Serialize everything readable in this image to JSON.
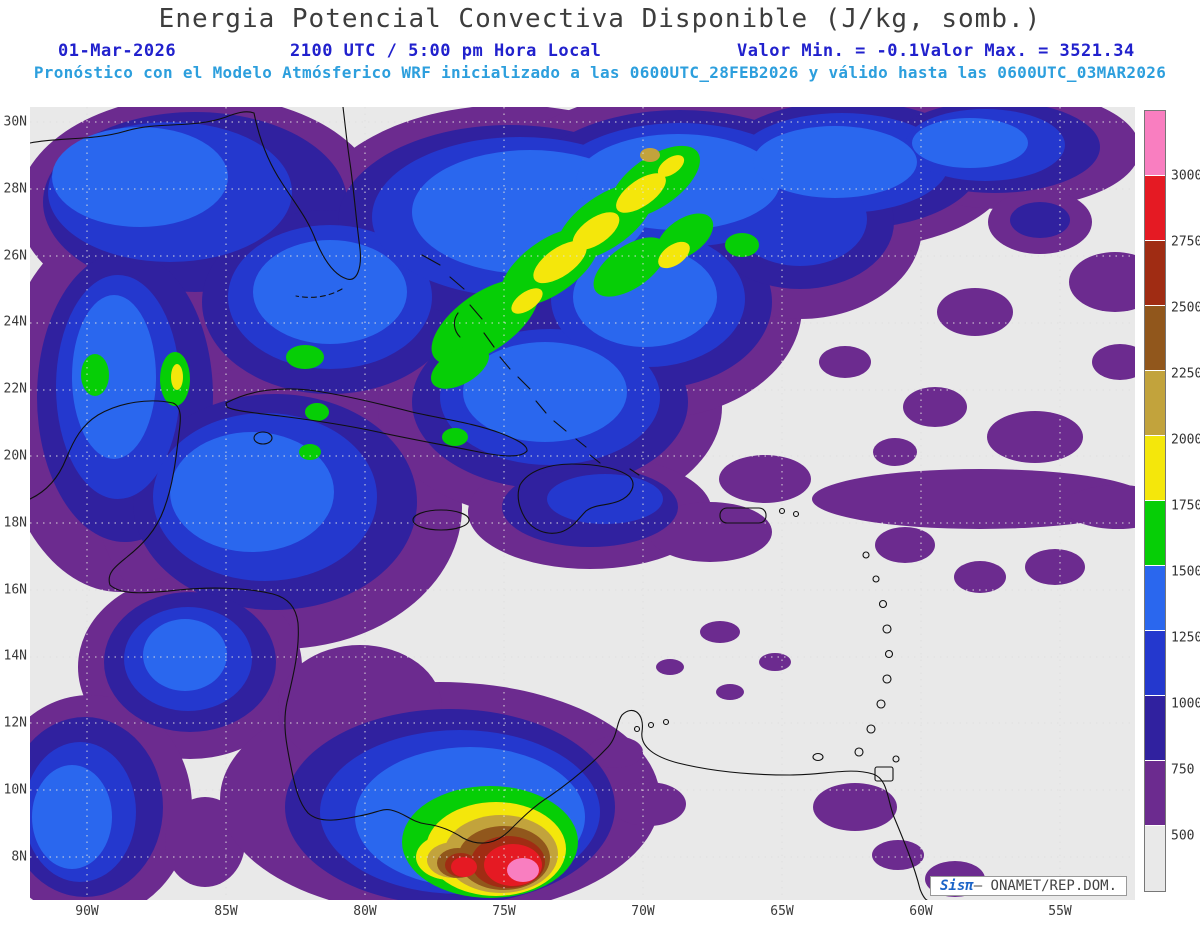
{
  "header": {
    "title": "Energia Potencial Convectiva Disponible (J/kg, somb.)",
    "date": "01-Mar-2026",
    "time": "2100 UTC / 5:00 pm Hora Local",
    "min_label": "Valor Min. = -0.1",
    "max_label": "Valor Max. = 3521.34",
    "forecast_note": "Pronóstico con el Modelo Atmósferico WRF inicializado a las 0600UTC_28FEB2026 y válido hasta las  0600UTC_03MAR2026"
  },
  "map": {
    "lat_ticks": [
      "30N",
      "28N",
      "26N",
      "24N",
      "22N",
      "20N",
      "18N",
      "16N",
      "14N",
      "12N",
      "10N",
      "8N"
    ],
    "lon_ticks": [
      "90W",
      "85W",
      "80W",
      "75W",
      "70W",
      "65W",
      "60W",
      "55W"
    ]
  },
  "colorbar": {
    "tick_labels": [
      "3000",
      "2750",
      "2500",
      "2250",
      "2000",
      "1750",
      "1500",
      "1250",
      "1000",
      "750",
      "500"
    ],
    "segments_top_to_bottom": [
      {
        "range": "> 3000",
        "color": "#F97EC0"
      },
      {
        "range": "2750 - 3000",
        "color": "#E51A23"
      },
      {
        "range": "2500 - 2750",
        "color": "#A02C13"
      },
      {
        "range": "2250 - 2500",
        "color": "#91571C"
      },
      {
        "range": "2000 - 2250",
        "color": "#C2A33C"
      },
      {
        "range": "1750 - 2000",
        "color": "#F4E70B"
      },
      {
        "range": "1500 - 1750",
        "color": "#06CE06"
      },
      {
        "range": "1250 - 1500",
        "color": "#2A67EE"
      },
      {
        "range": "1000 - 1250",
        "color": "#2438CE"
      },
      {
        "range": "750 - 1000",
        "color": "#30219F"
      },
      {
        "range": "500 - 750",
        "color": "#6C2B8F"
      },
      {
        "range": "< 500",
        "color": "#E9E9E9"
      }
    ]
  },
  "attribution": {
    "brand": "Sisπ",
    "text": "— ONAMET/REP.DOM."
  },
  "chart_data": {
    "type": "heatmap",
    "title": "Energia Potencial Convectiva Disponible (J/kg, somb.)",
    "units": "J/kg",
    "valid_time": "01-Mar-2026 2100 UTC / 5:00 pm Hora Local",
    "value_min": -0.1,
    "value_max": 3521.34,
    "model_note": "WRF inicializado 0600UTC_28FEB2026, válido hasta 0600UTC_03MAR2026",
    "lat_ticks_deg_n": [
      30,
      28,
      26,
      24,
      22,
      20,
      18,
      16,
      14,
      12,
      10,
      8
    ],
    "lon_ticks_deg_w": [
      90,
      85,
      80,
      75,
      70,
      65,
      60,
      55
    ],
    "contour_levels": [
      500,
      750,
      1000,
      1250,
      1500,
      1750,
      2000,
      2250,
      2500,
      2750,
      3000
    ],
    "palette_low_to_high": [
      "#E9E9E9",
      "#6C2B8F",
      "#30219F",
      "#2438CE",
      "#2A67EE",
      "#06CE06",
      "#F4E70B",
      "#C2A33C",
      "#91571C",
      "#A02C13",
      "#E51A23",
      "#F97EC0"
    ],
    "legend_position": "right",
    "grid": "dotted graticule every 2 deg lat / 5 deg lon",
    "visible_maxima": [
      {
        "area": "Atlantic NE of Bahamas",
        "approx_value": "1750-2250"
      },
      {
        "area": "Gulf of Mexico / NW Caribbean",
        "approx_value": "1000-1750"
      },
      {
        "area": "Northern Colombia coast",
        "approx_value": "2500-3500 (pink core)"
      }
    ]
  }
}
